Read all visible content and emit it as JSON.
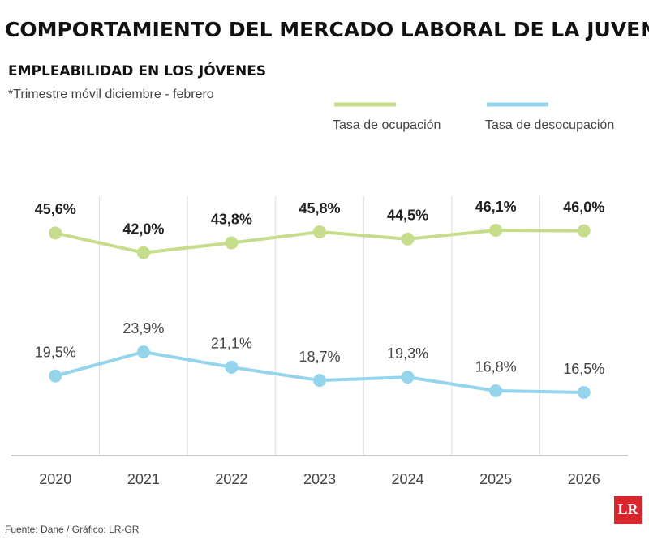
{
  "chart_data": {
    "type": "line",
    "title": "COMPORTAMIENTO DEL MERCADO LABORAL DE LA JUVENTUD",
    "subtitle": "EMPLEABILIDAD EN LOS JÓVENES",
    "note": "*Trimestre móvil diciembre - febrero",
    "categories": [
      "2020",
      "2021",
      "2022",
      "2023",
      "2024",
      "2025",
      "2026"
    ],
    "series": [
      {
        "name": "Tasa de ocupación",
        "color": "#c6dd8c",
        "values": [
          45.6,
          42.0,
          43.8,
          45.8,
          44.5,
          46.1,
          46.0
        ],
        "value_labels": [
          "45,6%",
          "42,0%",
          "43,8%",
          "45,8%",
          "44,5%",
          "46,1%",
          "46,0%"
        ]
      },
      {
        "name": "Tasa de desocupación",
        "color": "#95d5ec",
        "values": [
          19.5,
          23.9,
          21.1,
          18.7,
          19.3,
          16.8,
          16.5
        ],
        "value_labels": [
          "19,5%",
          "23,9%",
          "21,1%",
          "18,7%",
          "19,3%",
          "16,8%",
          "16,5%"
        ]
      }
    ],
    "source": "Fuente: Dane / Gráfico: LR-GR",
    "logo": "LR"
  }
}
